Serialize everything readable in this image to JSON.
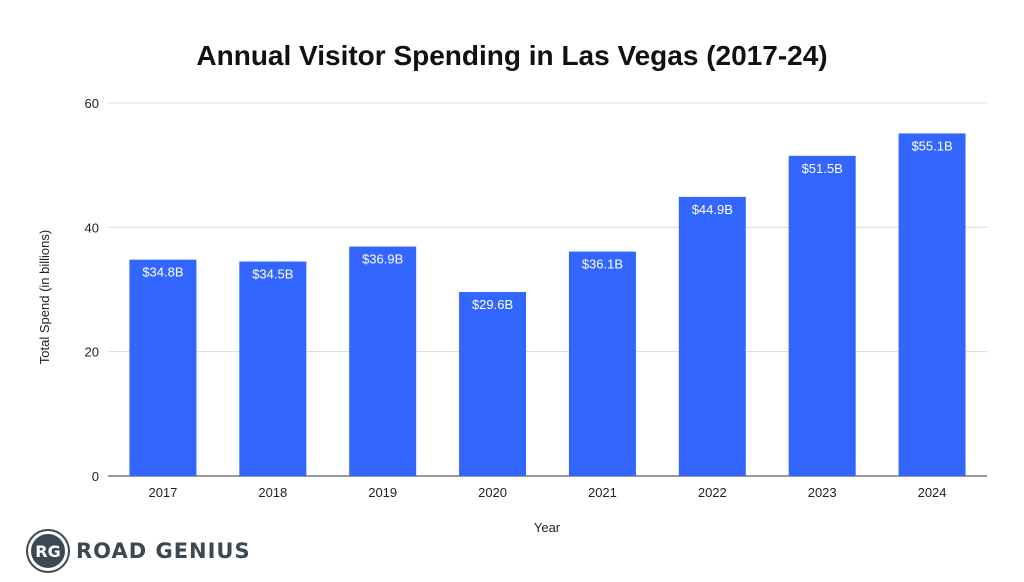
{
  "chart_data": {
    "type": "bar",
    "title": "Annual Visitor Spending in Las Vegas (2017-24)",
    "xlabel": "Year",
    "ylabel": "Total Spend (in billions)",
    "categories": [
      "2017",
      "2018",
      "2019",
      "2020",
      "2021",
      "2022",
      "2023",
      "2024"
    ],
    "values": [
      34.8,
      34.5,
      36.9,
      29.6,
      36.1,
      44.9,
      51.5,
      55.1
    ],
    "data_labels": [
      "$34.8B",
      "$34.5B",
      "$36.9B",
      "$29.6B",
      "$36.1B",
      "$44.9B",
      "$51.5B",
      "$55.1B"
    ],
    "ylim": [
      0,
      60
    ],
    "yticks": [
      "0",
      "20",
      "40",
      "60"
    ],
    "grid": true,
    "bar_color": "#3366ff"
  },
  "brand": {
    "badge": "RG",
    "name": "ROAD GENIUS"
  }
}
